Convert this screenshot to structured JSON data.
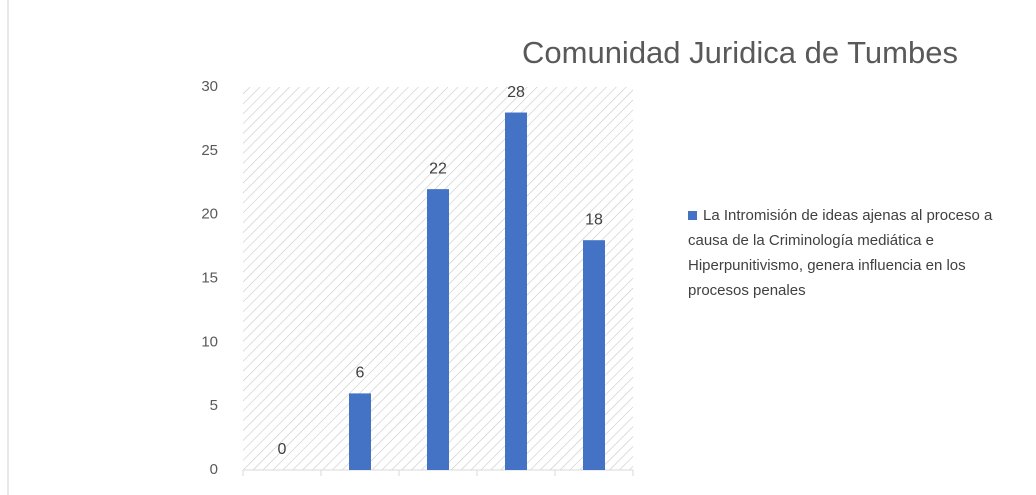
{
  "chart_data": {
    "type": "bar",
    "title": "Comunidad Juridica de Tumbes",
    "categories": [
      null,
      null,
      null,
      null,
      null
    ],
    "series": [
      {
        "name": "La Intromisión de ideas ajenas al proceso a causa de la Criminología mediática e Hiperpunitivismo, genera influencia en los procesos penales",
        "color": "#4472c4",
        "values": [
          0,
          6,
          22,
          28,
          18
        ]
      }
    ],
    "ylim": [
      0,
      30
    ],
    "yticks": [
      0,
      5,
      10,
      15,
      20,
      25,
      30
    ],
    "legend": "right"
  }
}
